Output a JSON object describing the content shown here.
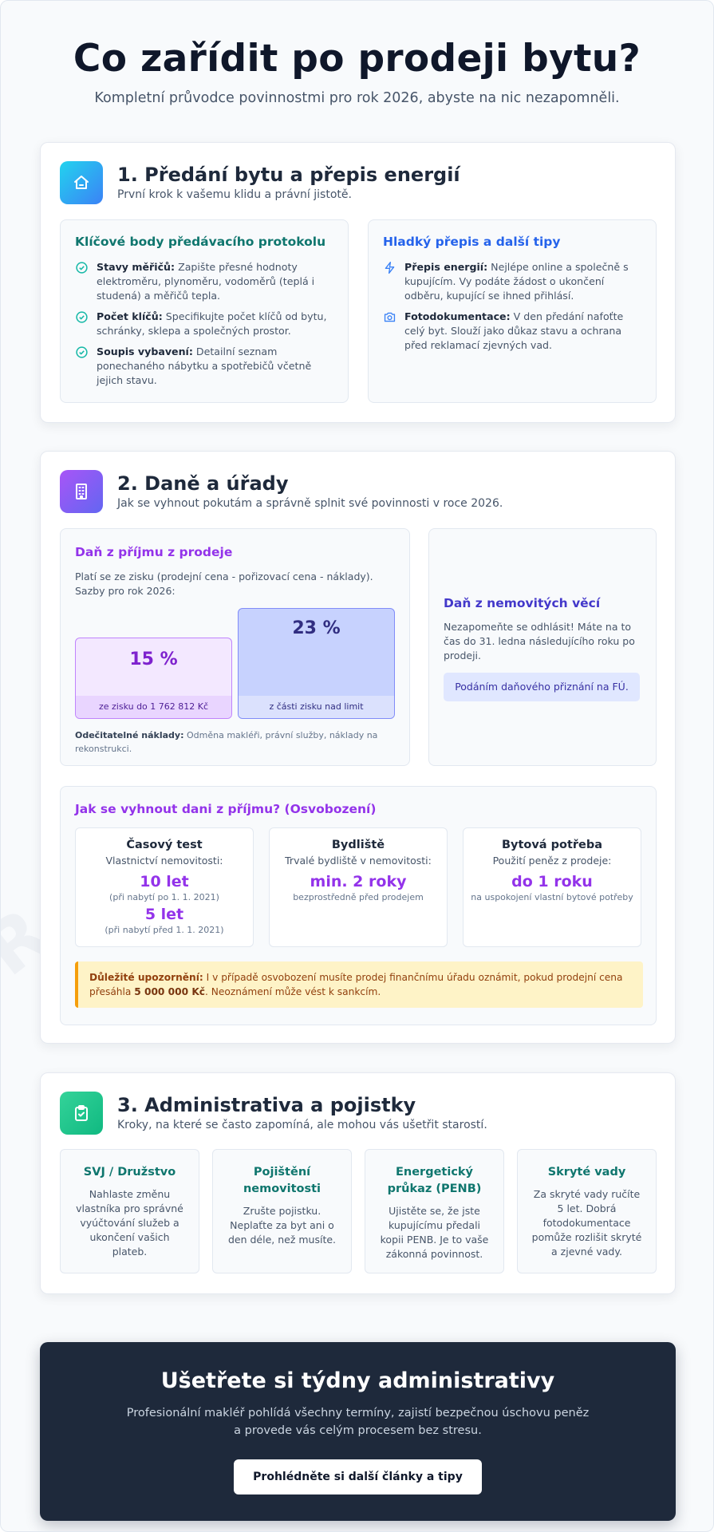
{
  "header": {
    "title": "Co zařídit po prodeji bytu?",
    "subtitle": "Kompletní průvodce povinnostmi pro rok 2026, abyste na nic nezapomněli."
  },
  "watermark": "Realitní rádce",
  "section1": {
    "title": "1. Předání bytu a přepis energií",
    "subtitle": "První krok k vašemu klidu a právní jistotě.",
    "icon": "home-icon",
    "left_box": {
      "title": "Klíčové body předávacího protokolu",
      "items": [
        {
          "label": "Stavy měřičů:",
          "text": " Zapište přesné hodnoty elektroměru, plynoměru, vodoměrů (teplá i studená) a měřičů tepla."
        },
        {
          "label": "Počet klíčů:",
          "text": " Specifikujte počet klíčů od bytu, schránky, sklepa a společných prostor."
        },
        {
          "label": "Soupis vybavení:",
          "text": " Detailní seznam ponechaného nábytku a spotřebičů včetně jejich stavu."
        }
      ]
    },
    "right_box": {
      "title": "Hladký přepis a další tipy",
      "items": [
        {
          "label": "Přepis energií:",
          "text": " Nejlépe online a společně s kupujícím. Vy podáte žádost o ukončení odběru, kupující se ihned přihlásí.",
          "icon": "lightning-icon"
        },
        {
          "label": "Fotodokumentace:",
          "text": " V den předání nafoťte celý byt. Slouží jako důkaz stavu a ochrana před reklamací zjevných vad.",
          "icon": "camera-icon"
        }
      ]
    }
  },
  "section2": {
    "title": "2. Daně a úřady",
    "subtitle": "Jak se vyhnout pokutám a správně splnit své povinnosti v roce 2026.",
    "icon": "building-icon",
    "income_tax": {
      "title": "Daň z příjmu z prodeje",
      "desc": "Platí se ze zisku (prodejní cena - pořizovací cena - náklady). Sazby pro rok 2026:",
      "rates": [
        {
          "value": "15 %",
          "label": "ze zisku do 1 762 812 Kč"
        },
        {
          "value": "23 %",
          "label": "z části zisku nad limit"
        }
      ],
      "deductible_label": "Odečitatelné náklady:",
      "deductible_text": " Odměna makléři, právní služby, náklady na rekonstrukci."
    },
    "property_tax": {
      "title": "Daň z nemovitých věcí",
      "desc": "Nezapomeňte se odhlásit! Máte na to čas do 31. ledna následujícího roku po prodeji.",
      "button": "Podáním daňového přiznání na FÚ."
    },
    "exemption": {
      "title": "Jak se vyhnout dani z příjmu? (Osvobození)",
      "cards": [
        {
          "title": "Časový test",
          "sub": "Vlastnictví nemovitosti:",
          "value1": "10 let",
          "note1": "(při nabytí po 1. 1. 2021)",
          "value2": "5 let",
          "note2": "(při nabytí před 1. 1. 2021)"
        },
        {
          "title": "Bydliště",
          "sub": "Trvalé bydliště v nemovitosti:",
          "value1": "min. 2 roky",
          "note1": "bezprostředně před prodejem"
        },
        {
          "title": "Bytová potřeba",
          "sub": "Použití peněz z prodeje:",
          "value1": "do 1 roku",
          "note1": "na uspokojení vlastní bytové potřeby"
        }
      ],
      "warning": {
        "label": "Důležité upozornění:",
        "text1": " I v případě osvobození musíte prodej finančnímu úřadu oznámit, pokud prodejní cena přesáhla ",
        "amount": "5 000 000 Kč",
        "text2": ". Neoznámení může vést k sankcím."
      }
    }
  },
  "section3": {
    "title": "3. Administrativa a pojistky",
    "subtitle": "Kroky, na které se často zapomíná, ale mohou vás ušetřit starostí.",
    "icon": "clipboard-check-icon",
    "cards": [
      {
        "title": "SVJ / Družstvo",
        "desc": "Nahlaste změnu vlastníka pro správné vyúčtování služeb a ukončení vašich plateb."
      },
      {
        "title": "Pojištění nemovitosti",
        "desc": "Zrušte pojistku. Neplaťte za byt ani o den déle, než musíte."
      },
      {
        "title": "Energetický průkaz (PENB)",
        "desc": "Ujistěte se, že jste kupujícímu předali kopii PENB. Je to vaše zákonná povinnost."
      },
      {
        "title": "Skryté vady",
        "desc": "Za skryté vady ručíte 5 let. Dobrá fotodokumentace pomůže rozlišit skryté a zjevné vady."
      }
    ]
  },
  "cta": {
    "title": "Ušetřete si týdny administrativy",
    "desc": "Profesionální makléř pohlídá všechny termíny, zajistí bezpečnou úschovu peněz a provede vás celým procesem bez stresu.",
    "button": "Prohlédněte si další články a tipy"
  },
  "colors": {
    "teal": "#0f766e",
    "blue": "#2563eb",
    "purple": "#9333ea",
    "indigo": "#3730a3",
    "warning_bg": "#fef3c7",
    "cta_bg": "#1e293b"
  }
}
